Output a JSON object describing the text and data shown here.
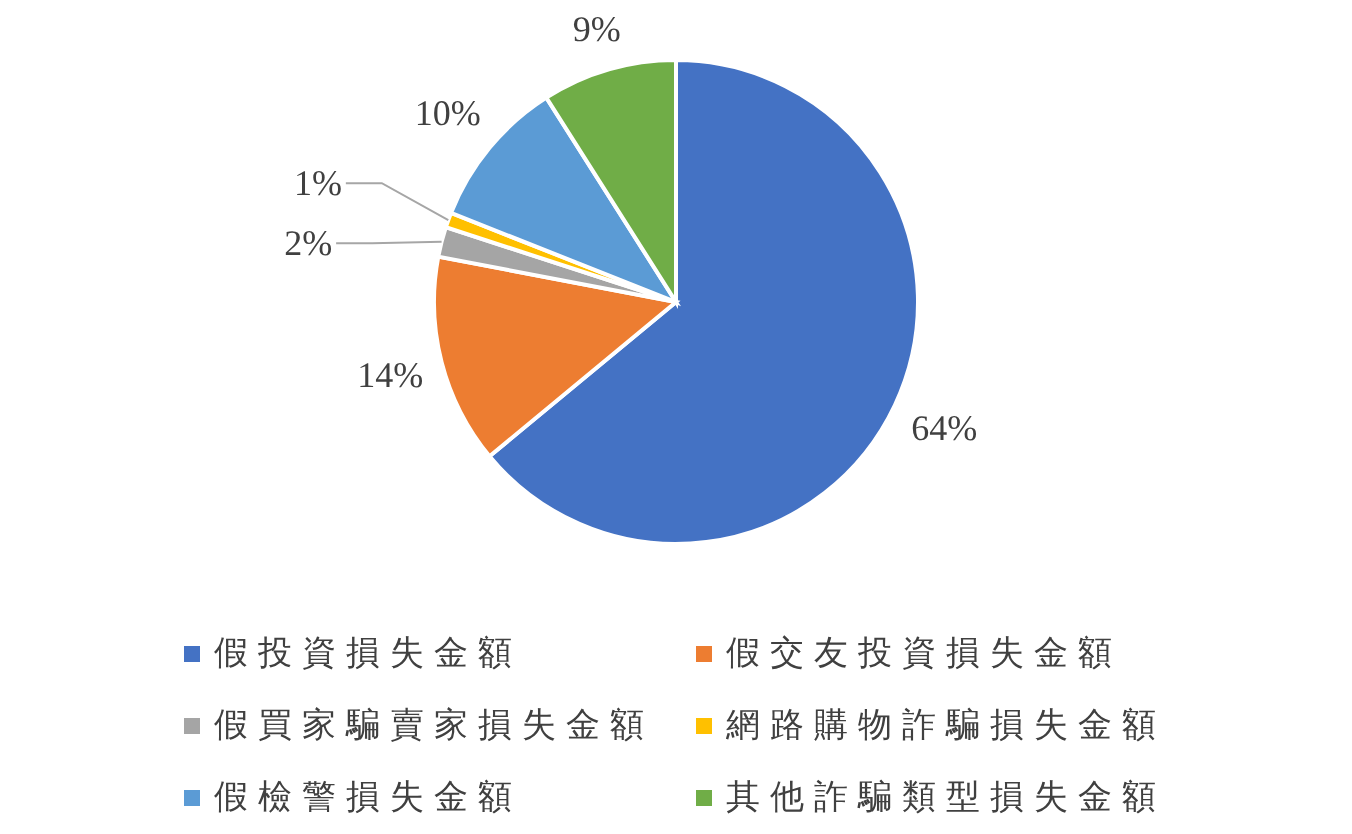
{
  "chart_data": {
    "type": "pie",
    "categories": [
      "假投資損失金額",
      "假交友投資損失金額",
      "假買家騙賣家損失金額",
      "網路購物詐騙損失金額",
      "假檢警損失金額",
      "其他詐騙類型損失金額"
    ],
    "values": [
      64,
      14,
      2,
      1,
      10,
      9
    ],
    "colors": [
      "#4472c4",
      "#ed7d31",
      "#a5a5a5",
      "#ffc000",
      "#5b9bd5",
      "#70ad47"
    ],
    "value_labels": [
      "64%",
      "14%",
      "2%",
      "1%",
      "10%",
      "9%"
    ],
    "legend": "bottom"
  }
}
